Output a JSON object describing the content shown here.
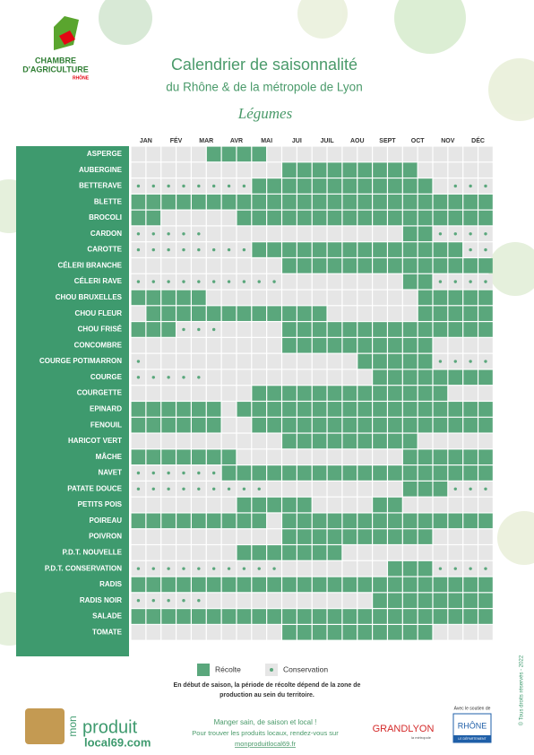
{
  "logo": {
    "line1": "CHAMBRE",
    "line2": "D'AGRICULTURE",
    "line3": "RHÔNE"
  },
  "header": {
    "title": "Calendrier de saisonnalité",
    "subtitle": "du Rhône & de la métropole de Lyon",
    "section": "Légumes"
  },
  "table": {
    "months": [
      "JAN",
      "FÉV",
      "MAR",
      "AVR",
      "MAI",
      "JUI",
      "JUIL",
      "AOU",
      "SEPT",
      "OCT",
      "NOV",
      "DÉC"
    ],
    "rows": [
      {
        "name": "ASPERGE",
        "cells": ".....hhhh..............."
      },
      {
        "name": "AUBERGINE",
        "cells": "..........hhhhhhhhh....."
      },
      {
        "name": "BETTERAVE",
        "cells": "cccccccchhhhhhhhhhhh.ccc"
      },
      {
        "name": "BLETTE",
        "cells": "hhhhhhhhhhhhhhhhhhhhhhhh"
      },
      {
        "name": "BROCOLI",
        "cells": "hh.....hhhhhhhhhhhhhhhhh"
      },
      {
        "name": "CARDON",
        "cells": "ccccc.............hhcccc"
      },
      {
        "name": "CAROTTE",
        "cells": "cccccccchhhhhhhhhhhhhhcc"
      },
      {
        "name": "CÉLERI BRANCHE",
        "cells": "..........hhhhhhhhhhhhhh"
      },
      {
        "name": "CÉLERI RAVE",
        "cells": "cccccccccc........hhcccc"
      },
      {
        "name": "CHOU BRUXELLES",
        "cells": "hhhhh..............hhhhh"
      },
      {
        "name": "CHOU FLEUR",
        "cells": ".hhhhhhhhhhhh......hhhhh"
      },
      {
        "name": "CHOU FRISÉ",
        "cells": "hhhccc....hhhhhhhhhhhhhh"
      },
      {
        "name": "CONCOMBRE",
        "cells": "..........hhhhhhhhhh...."
      },
      {
        "name": "COURGE POTIMARRON",
        "cells": "c..............hhhhhcccc"
      },
      {
        "name": "COURGE",
        "cells": "ccccc...........hhhhhhhh"
      },
      {
        "name": "COURGETTE",
        "cells": "........hhhhhhhhhhhhh..."
      },
      {
        "name": "EPINARD",
        "cells": "hhhhhh.hhhhhhhhhhhhhhhhh"
      },
      {
        "name": "FENOUIL",
        "cells": "hhhhhh..hhhhhhhhhhhhhhhh"
      },
      {
        "name": "HARICOT VERT",
        "cells": "..........hhhhhhhhh....."
      },
      {
        "name": "MÂCHE",
        "cells": "hhhhhhh...........hhhhhh"
      },
      {
        "name": "NAVET",
        "cells": "cccccchhhhhhhhhhhhhhhhhh"
      },
      {
        "name": "PATATE DOUCE",
        "cells": "ccccccccc.........hhhccc"
      },
      {
        "name": "PETITS POIS",
        "cells": ".......hhhhh....hh......"
      },
      {
        "name": "POIREAU",
        "cells": "hhhhhhhhh.hhhhhhhhhhhhhh"
      },
      {
        "name": "POIVRON",
        "cells": "..........hhhhhhhhhh...."
      },
      {
        "name": "P.D.T. NOUVELLE",
        "cells": ".......hhhhhhh.........."
      },
      {
        "name": "P.D.T. CONSERVATION",
        "cells": "cccccccccc.......hhhcccc"
      },
      {
        "name": "RADIS",
        "cells": "hhhhhhhhhhhhhhhhhhhhhhhh"
      },
      {
        "name": "RADIS NOIR",
        "cells": "ccccc...........hhhhhhhh"
      },
      {
        "name": "SALADE",
        "cells": "hhhhhhhhhhhhhhhhhhhhhhhh"
      },
      {
        "name": "TOMATE",
        "cells": "..........hhhhhhhhhh...."
      }
    ]
  },
  "legend": {
    "harvest": "Récolte",
    "storage": "Conservation"
  },
  "note": [
    "En début de saison, la période de récolte dépend de la zone de",
    "production au sein du territoire."
  ],
  "footer": {
    "brand1": "mon",
    "brand2": "produit",
    "brand3": "local69.com",
    "slogan": "Manger sain, de saison et local !",
    "info": "Pour trouver les produits locaux, rendez-vous sur",
    "url": "monproduitlocal69.fr",
    "partner": "GRANDLYON",
    "partner_sub": "la métropole",
    "support": "Avec le soutien de",
    "dept": "RHÔNE",
    "dept_sub": "LE DÉPARTEMENT",
    "copyright": "© Tous droits réservés - 2022"
  }
}
